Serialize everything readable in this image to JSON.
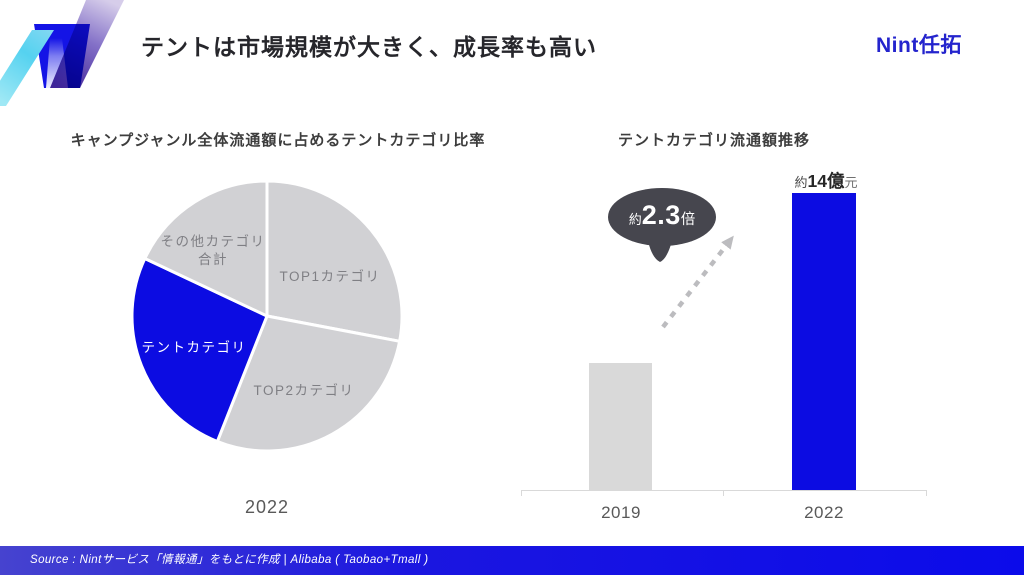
{
  "header": {
    "title": "テントは市場規模が大きく、成長率も高い",
    "brand": "Nint任拓"
  },
  "footer": {
    "source": "Source : Nintサービス「情報通」をもとに作成 | Alibaba ( Taobao+Tmall )"
  },
  "colors": {
    "accent_blue": "#0c0ce2",
    "pie_gray": "#d1d1d4",
    "bar_gray": "#d9d9d9",
    "bubble_dark": "#46464e",
    "arrow_gray": "#bcbcbf",
    "brand_blue": "#2424cd",
    "footer_gradient_left": "#4643cf",
    "footer_gradient_right": "#0b0bea"
  },
  "chart_data": [
    {
      "type": "pie",
      "title": "キャンプジャンル全体流通額に占めるテントカテゴリ比率",
      "caption": "2022",
      "start_angle_deg": 0,
      "direction": "clockwise",
      "legend_position": "inside",
      "slices": [
        {
          "label": "TOP1カテゴリ",
          "value": 28,
          "color": "#d1d1d4"
        },
        {
          "label": "TOP2カテゴリ",
          "value": 28,
          "color": "#d1d1d4"
        },
        {
          "label": "テントカテゴリ",
          "value": 26,
          "color": "#0c0ce2"
        },
        {
          "label": "その他カテゴリ合計",
          "label_lines": [
            "その他カテゴリ",
            "合計"
          ],
          "value": 18,
          "color": "#d1d1d4"
        }
      ]
    },
    {
      "type": "bar",
      "title": "テントカテゴリ流通額推移",
      "categories": [
        "2019",
        "2022"
      ],
      "values": [
        6,
        14
      ],
      "unit": "億元",
      "ylim": [
        0,
        14
      ],
      "grid": false,
      "bar_colors": [
        "#d9d9d9",
        "#0c0ce2"
      ],
      "value_label": {
        "prefix": "約",
        "bold": "14億",
        "suffix": "元"
      },
      "growth_bubble": {
        "prefix": "約",
        "big": "2.3",
        "suffix": "倍"
      }
    }
  ]
}
